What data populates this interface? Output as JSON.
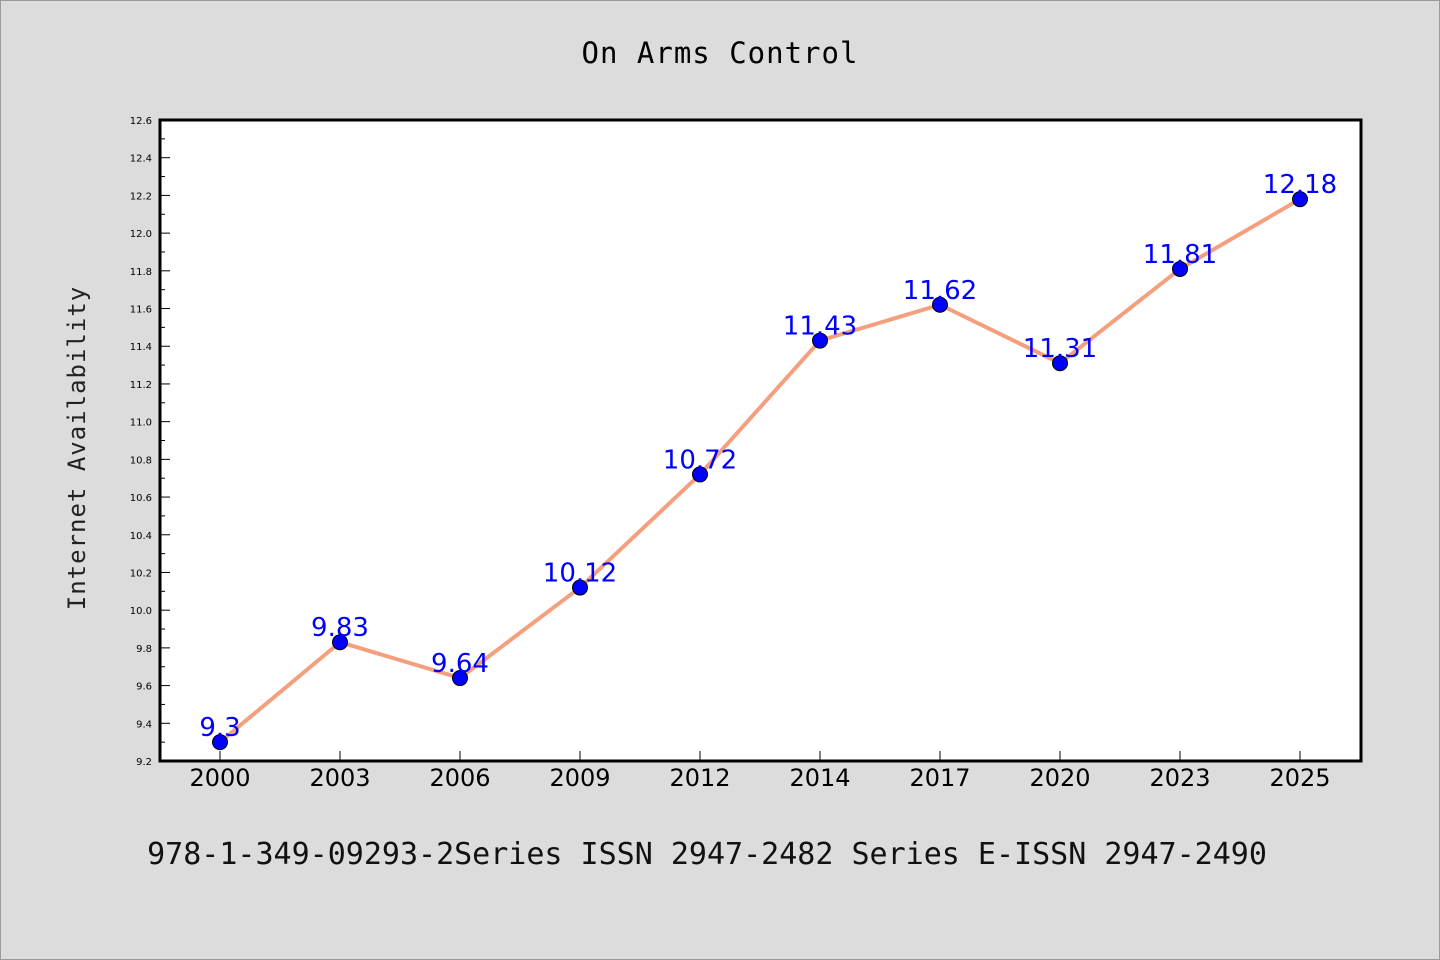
{
  "chart_data": {
    "type": "line",
    "title": "On Arms Control",
    "xlabel": "",
    "ylabel": "Internet Availability",
    "categories": [
      "2000",
      "2003",
      "2006",
      "2009",
      "2012",
      "2014",
      "2017",
      "2020",
      "2023",
      "2025"
    ],
    "series": [
      {
        "values": [
          9.3,
          9.83,
          9.64,
          10.12,
          10.72,
          11.43,
          11.62,
          11.31,
          11.81,
          12.18
        ],
        "data_labels": [
          "9.3",
          "9.83",
          "9.64",
          "10.12",
          "10.72",
          "11.43",
          "11.62",
          "11.31",
          "11.81",
          "12.18"
        ],
        "line_color": "#f4a07f",
        "marker_color": "#0000ff"
      }
    ],
    "ylim": [
      9.2,
      12.6
    ],
    "yticks": [
      "9.2",
      "9.4",
      "9.6",
      "9.8",
      "10.0",
      "10.2",
      "10.4",
      "10.6",
      "10.8",
      "11.0",
      "11.2",
      "11.4",
      "11.6",
      "11.8",
      "12.0",
      "12.2",
      "12.4",
      "12.6"
    ],
    "grid": false,
    "legend": "none"
  },
  "footer": {
    "text": "978-1-349-09293-2Series ISSN 2947-2482 Series E-ISSN 2947-2490"
  },
  "colors": {
    "background": "#dcdcdc",
    "plot_area": "#ffffff",
    "line": "#f4a07f",
    "marker": "#0000ff",
    "data_label": "#0000ff"
  }
}
